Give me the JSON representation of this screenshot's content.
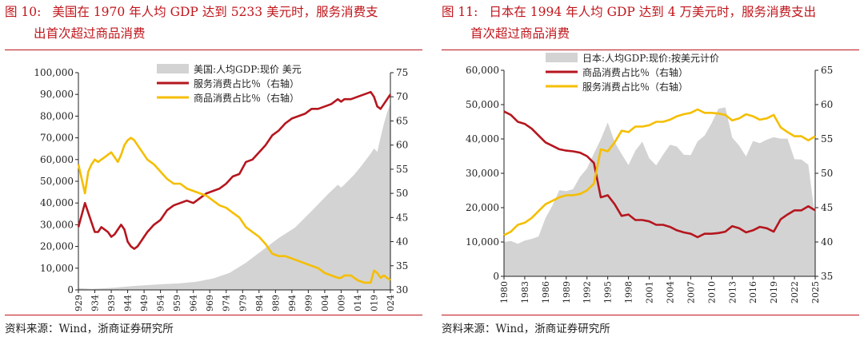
{
  "chart_data": [
    {
      "type": "area+line",
      "figure_label": "图 10:",
      "title_line1": "美国在 1970 年人均 GDP 达到 5233 美元时，服务消费支",
      "title_line2": "出首次超过商品消费",
      "source": "资料来源：Wind，浙商证券研究所",
      "legend": [
        "美国:人均GDP:现价 美元",
        "服务消费占比％（右轴）",
        "商品消费占比％（右轴）"
      ],
      "colors": {
        "area": "#d3d3d3",
        "service": "#b5161e",
        "goods": "#f5be00"
      },
      "x_range": [
        1929,
        2024
      ],
      "x_tick_labels": [
        "929",
        "934",
        "939",
        "944",
        "949",
        "954",
        "959",
        "964",
        "969",
        "974",
        "979",
        "984",
        "989",
        "994",
        "999",
        "004",
        "009",
        "014",
        "019",
        "024"
      ],
      "left_axis": {
        "range": [
          0,
          100000
        ],
        "ticks": [
          "0",
          "10,000",
          "20,000",
          "30,000",
          "40,000",
          "50,000",
          "60,000",
          "70,000",
          "80,000",
          "90,000",
          "100,000"
        ]
      },
      "right_axis": {
        "range": [
          30,
          75
        ],
        "ticks": [
          "30",
          "35",
          "40",
          "45",
          "50",
          "55",
          "60",
          "65",
          "70",
          "75"
        ]
      },
      "series": [
        {
          "name": "美国:人均GDP:现价 美元",
          "axis": "left",
          "kind": "area",
          "x": [
            1929,
            1933,
            1940,
            1945,
            1950,
            1955,
            1960,
            1965,
            1970,
            1975,
            1980,
            1985,
            1990,
            1995,
            2000,
            2005,
            2008,
            2009,
            2010,
            2013,
            2015,
            2018,
            2019,
            2020,
            2021,
            2022,
            2023,
            2024
          ],
          "y": [
            850,
            450,
            1000,
            1700,
            2200,
            2700,
            3000,
            3800,
            5233,
            7800,
            12500,
            18200,
            23900,
            28700,
            36300,
            44100,
            48400,
            47100,
            48500,
            53100,
            56800,
            62800,
            65100,
            63500,
            70200,
            76400,
            81700,
            85800
          ]
        },
        {
          "name": "服务消费占比％（右轴）",
          "axis": "right",
          "kind": "line",
          "key": "service",
          "x": [
            1929,
            1931,
            1932,
            1933,
            1934,
            1935,
            1936,
            1937,
            1938,
            1939,
            1940,
            1941,
            1942,
            1943,
            1944,
            1945,
            1946,
            1947,
            1948,
            1949,
            1950,
            1952,
            1954,
            1956,
            1958,
            1960,
            1962,
            1964,
            1966,
            1968,
            1970,
            1972,
            1974,
            1976,
            1978,
            1980,
            1982,
            1984,
            1986,
            1988,
            1990,
            1992,
            1994,
            1996,
            1998,
            2000,
            2002,
            2004,
            2006,
            2008,
            2009,
            2010,
            2011,
            2012,
            2014,
            2016,
            2018,
            2019,
            2020,
            2021,
            2022,
            2024
          ],
          "y": [
            43,
            48,
            46,
            44,
            42,
            42,
            43,
            42.5,
            42,
            41,
            41.5,
            42.5,
            43.5,
            42.5,
            40,
            39,
            38.5,
            39,
            40,
            41,
            42,
            43.5,
            44.5,
            46.5,
            47.5,
            48,
            48.5,
            48,
            49,
            50,
            50.5,
            51,
            52,
            53.5,
            54,
            56.5,
            57,
            58.5,
            60,
            62,
            63,
            64.5,
            65.5,
            66,
            66.5,
            67.5,
            67.5,
            68,
            68.5,
            69.5,
            69,
            69.5,
            69.5,
            69.5,
            70,
            70.5,
            71,
            70,
            68,
            67.5,
            68.5,
            70.5
          ]
        },
        {
          "name": "商品消费占比％（右轴）",
          "axis": "right",
          "kind": "line",
          "key": "goods",
          "x": [
            1929,
            1930,
            1931,
            1932,
            1933,
            1934,
            1935,
            1936,
            1937,
            1938,
            1939,
            1940,
            1941,
            1942,
            1943,
            1944,
            1945,
            1946,
            1947,
            1948,
            1949,
            1950,
            1952,
            1954,
            1956,
            1958,
            1960,
            1962,
            1964,
            1966,
            1968,
            1970,
            1972,
            1974,
            1976,
            1978,
            1980,
            1982,
            1984,
            1986,
            1988,
            1990,
            1992,
            1994,
            1996,
            1998,
            2000,
            2002,
            2004,
            2006,
            2008,
            2009,
            2010,
            2012,
            2014,
            2016,
            2018,
            2019,
            2020,
            2021,
            2022,
            2024
          ],
          "y": [
            56,
            53,
            50,
            54.5,
            56,
            57,
            56.5,
            57,
            57.5,
            58,
            58.5,
            57.5,
            56.5,
            58,
            60,
            61,
            61.5,
            61,
            60,
            59,
            58,
            57,
            56,
            54.5,
            53,
            52,
            52,
            51,
            50.5,
            50,
            49.5,
            48.5,
            47.5,
            47,
            46,
            45,
            43,
            42,
            41,
            39.5,
            37.5,
            37,
            37,
            36.5,
            36,
            35.5,
            35,
            34.5,
            33.5,
            33,
            32.5,
            32.5,
            33,
            33,
            32,
            31.5,
            31.5,
            34,
            33.5,
            32.5,
            33,
            32
          ]
        }
      ]
    },
    {
      "type": "area+line",
      "figure_label": "图 11:",
      "title_line1": "日本在 1994 年人均 GDP 达到 4 万美元时，服务消费支出",
      "title_line2": "首次超过商品消费",
      "source": "资料来源：Wind，浙商证券研究所",
      "legend": [
        "日本:人均GDP:现价:按美元计价",
        "商品消费占比％（右轴）",
        "服务消费占比％（右轴）"
      ],
      "colors": {
        "area": "#d3d3d3",
        "goods": "#b5161e",
        "service": "#f5be00"
      },
      "x_range": [
        1980,
        2025
      ],
      "x_tick_labels": [
        "1980",
        "1983",
        "1986",
        "1989",
        "1992",
        "1995",
        "1998",
        "2001",
        "2004",
        "2007",
        "2010",
        "2013",
        "2016",
        "2019",
        "2022",
        "2025"
      ],
      "left_axis": {
        "range": [
          0,
          60000
        ],
        "ticks": [
          "0",
          "10,000",
          "20,000",
          "30,000",
          "40,000",
          "50,000",
          "60,000"
        ]
      },
      "right_axis": {
        "range": [
          35,
          65
        ],
        "ticks": [
          "35",
          "40",
          "45",
          "50",
          "55",
          "60",
          "65"
        ]
      },
      "series": [
        {
          "name": "日本:人均GDP:现价:按美元计价",
          "axis": "left",
          "kind": "area",
          "x": [
            1980,
            1981,
            1982,
            1983,
            1984,
            1985,
            1986,
            1987,
            1988,
            1989,
            1990,
            1991,
            1992,
            1993,
            1994,
            1995,
            1996,
            1997,
            1998,
            1999,
            2000,
            2001,
            2002,
            2003,
            2004,
            2005,
            2006,
            2007,
            2008,
            2009,
            2010,
            2011,
            2012,
            2013,
            2014,
            2015,
            2016,
            2017,
            2018,
            2019,
            2020,
            2021,
            2022,
            2023,
            2024,
            2025
          ],
          "y": [
            10000,
            10300,
            9500,
            10400,
            10900,
            11600,
            17000,
            20600,
            25100,
            24800,
            25400,
            29000,
            31400,
            35800,
            39900,
            44800,
            39100,
            35600,
            32400,
            36600,
            39200,
            34400,
            32300,
            35400,
            38300,
            37800,
            35400,
            35300,
            39300,
            41000,
            44500,
            48800,
            49200,
            40400,
            38100,
            34900,
            39400,
            38800,
            39800,
            40500,
            40100,
            40100,
            34100,
            34000,
            32500,
            17000
          ]
        },
        {
          "name": "商品消费占比％（右轴）",
          "axis": "right",
          "kind": "line",
          "key": "goods",
          "x": [
            1980,
            1981,
            1982,
            1983,
            1984,
            1985,
            1986,
            1987,
            1988,
            1989,
            1990,
            1991,
            1992,
            1993,
            1994,
            1995,
            1996,
            1997,
            1998,
            1999,
            2000,
            2001,
            2002,
            2003,
            2004,
            2005,
            2006,
            2007,
            2008,
            2009,
            2010,
            2011,
            2012,
            2013,
            2014,
            2015,
            2016,
            2017,
            2018,
            2019,
            2020,
            2021,
            2022,
            2023,
            2024,
            2025
          ],
          "y": [
            59,
            58.5,
            57.5,
            57.2,
            56.5,
            55.5,
            54.5,
            54,
            53.5,
            53.3,
            53.2,
            53,
            52.5,
            51.5,
            46.5,
            46.8,
            45.5,
            43.8,
            44,
            43.2,
            43.2,
            43,
            42.5,
            42.5,
            42.2,
            41.7,
            41.4,
            41.2,
            40.7,
            41.2,
            41.2,
            41.3,
            41.5,
            42.3,
            42,
            41.4,
            41.7,
            42.2,
            42,
            41.5,
            43.3,
            44,
            44.6,
            44.6,
            45.2,
            44.6
          ]
        },
        {
          "name": "服务消费占比％（右轴）",
          "axis": "right",
          "kind": "line",
          "key": "service",
          "x": [
            1980,
            1981,
            1982,
            1983,
            1984,
            1985,
            1986,
            1987,
            1988,
            1989,
            1990,
            1991,
            1992,
            1993,
            1994,
            1995,
            1996,
            1997,
            1998,
            1999,
            2000,
            2001,
            2002,
            2003,
            2004,
            2005,
            2006,
            2007,
            2008,
            2009,
            2010,
            2011,
            2012,
            2013,
            2014,
            2015,
            2016,
            2017,
            2018,
            2019,
            2020,
            2021,
            2022,
            2023,
            2024,
            2025
          ],
          "y": [
            41,
            41.5,
            42.5,
            42.8,
            43.5,
            44.5,
            45.5,
            46,
            46.5,
            46.8,
            46.8,
            47,
            47.5,
            48.5,
            53.5,
            53.2,
            54.5,
            56.2,
            56,
            56.8,
            56.8,
            57,
            57.5,
            57.5,
            57.8,
            58.3,
            58.6,
            58.8,
            59.3,
            58.8,
            58.8,
            58.7,
            58.5,
            57.7,
            58,
            58.6,
            58.3,
            57.8,
            58,
            58.5,
            56.7,
            56,
            55.4,
            55.4,
            54.8,
            55.4
          ]
        }
      ]
    }
  ]
}
